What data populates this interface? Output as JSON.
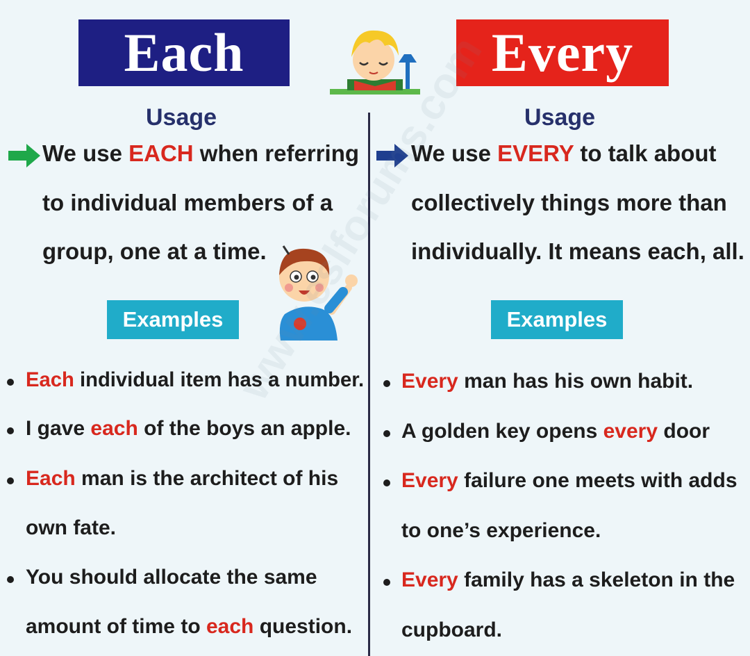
{
  "titles": {
    "left": "Each",
    "right": "Every"
  },
  "usage": {
    "left_heading": "Usage",
    "right_heading": "Usage"
  },
  "left_desc": {
    "line1_a": "We use ",
    "line1_b": "EACH",
    "line1_c": " when referring",
    "line2": "to individual members of a",
    "line3": "group, one at a time."
  },
  "right_desc": {
    "line1_a": "We use ",
    "line1_b": "EVERY",
    "line1_c": " to talk about",
    "line2": "collectively things more than",
    "line3": "individually. It means each, all."
  },
  "examples_label": {
    "left": "Examples",
    "right": "Examples"
  },
  "left_examples": {
    "e1_a": "Each",
    "e1_b": " individual item has a number.",
    "e2_a": "I gave ",
    "e2_b": "each",
    "e2_c": " of the boys an apple.",
    "e3_a": "Each",
    "e3_b": " man is the architect of his",
    "e3_line2": "own fate.",
    "e4_line1": "You should allocate the same",
    "e4_line2_a": "amount of time to ",
    "e4_line2_b": "each",
    "e4_line2_c": " question."
  },
  "right_examples": {
    "e1_a": "Every",
    "e1_b": " man has his own habit.",
    "e2_a": "A golden key opens ",
    "e2_b": "every",
    "e2_c": " door",
    "e3_a": "Every",
    "e3_b": " failure one meets with adds",
    "e3_line2": "to one’s experience.",
    "e4_a": "Every",
    "e4_b": " family has a skeleton in the",
    "e4_line2": "cupboard."
  },
  "watermark": "www.eslforums.com",
  "colors": {
    "each_box": "#1e1f83",
    "every_box": "#e5231b",
    "accent_red": "#d8281e",
    "examples_badge": "#20acc9",
    "green_arrow": "#1fa84a",
    "blue_arrow": "#1f3f8f"
  }
}
